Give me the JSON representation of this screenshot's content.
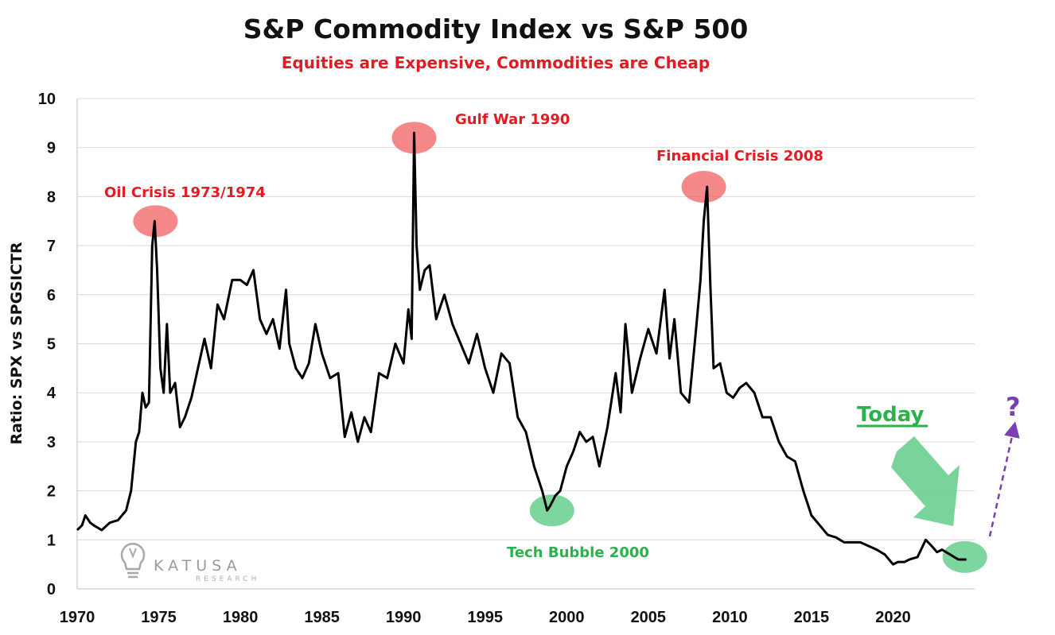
{
  "chart_data": {
    "type": "line",
    "title": "S&P Commodity Index vs S&P 500",
    "subtitle": "Equities are Expensive, Commodities are Cheap",
    "ylabel": "Ratio: SPX vs SPGSICTR",
    "xlabel": "",
    "xlim": [
      1970,
      2025
    ],
    "ylim": [
      0,
      10
    ],
    "xticks": [
      "1970",
      "1975",
      "1980",
      "1985",
      "1990",
      "1995",
      "2000",
      "2005",
      "2010",
      "2015",
      "2020"
    ],
    "yticks": [
      "0",
      "1",
      "2",
      "3",
      "4",
      "5",
      "6",
      "7",
      "8",
      "9",
      "10"
    ],
    "grid": "horizontal",
    "legend": "none",
    "series": [
      {
        "color": "#000000",
        "x": [
          1970.0,
          1970.3,
          1970.5,
          1970.8,
          1971.0,
          1971.5,
          1972.0,
          1972.5,
          1973.0,
          1973.3,
          1973.6,
          1973.8,
          1974.0,
          1974.2,
          1974.4,
          1974.6,
          1974.75,
          1974.9,
          1975.1,
          1975.3,
          1975.5,
          1975.7,
          1976.0,
          1976.3,
          1976.6,
          1977.0,
          1977.4,
          1977.8,
          1978.2,
          1978.6,
          1979.0,
          1979.5,
          1980.0,
          1980.4,
          1980.8,
          1981.2,
          1981.6,
          1982.0,
          1982.4,
          1982.8,
          1983.0,
          1983.4,
          1983.8,
          1984.2,
          1984.6,
          1985.0,
          1985.5,
          1986.0,
          1986.4,
          1986.8,
          1987.2,
          1987.6,
          1988.0,
          1988.5,
          1989.0,
          1989.5,
          1990.0,
          1990.3,
          1990.5,
          1990.65,
          1990.8,
          1991.0,
          1991.3,
          1991.6,
          1992.0,
          1992.5,
          1993.0,
          1993.5,
          1994.0,
          1994.5,
          1995.0,
          1995.5,
          1996.0,
          1996.5,
          1997.0,
          1997.5,
          1998.0,
          1998.5,
          1998.8,
          1999.0,
          1999.3,
          1999.6,
          2000.0,
          2000.4,
          2000.8,
          2001.2,
          2001.6,
          2002.0,
          2002.5,
          2003.0,
          2003.3,
          2003.6,
          2004.0,
          2004.5,
          2005.0,
          2005.5,
          2006.0,
          2006.3,
          2006.6,
          2007.0,
          2007.5,
          2007.9,
          2008.2,
          2008.4,
          2008.6,
          2008.8,
          2009.0,
          2009.4,
          2009.8,
          2010.2,
          2010.6,
          2011.0,
          2011.5,
          2012.0,
          2012.5,
          2013.0,
          2013.5,
          2014.0,
          2014.5,
          2015.0,
          2015.5,
          2016.0,
          2016.5,
          2017.0,
          2018.0,
          2019.0,
          2019.5,
          2020.0,
          2020.3,
          2020.7,
          2021.0,
          2021.5,
          2022.0,
          2022.3,
          2022.7,
          2023.0,
          2023.5,
          2024.0,
          2024.5
        ],
        "y": [
          1.2,
          1.3,
          1.5,
          1.35,
          1.3,
          1.2,
          1.35,
          1.4,
          1.6,
          2.0,
          3.0,
          3.2,
          4.0,
          3.7,
          3.8,
          7.0,
          7.5,
          6.5,
          4.5,
          4.0,
          5.4,
          4.0,
          4.2,
          3.3,
          3.5,
          3.9,
          4.5,
          5.1,
          4.5,
          5.8,
          5.5,
          6.3,
          6.3,
          6.2,
          6.5,
          5.5,
          5.2,
          5.5,
          4.9,
          6.1,
          5.0,
          4.5,
          4.3,
          4.6,
          5.4,
          4.8,
          4.3,
          4.4,
          3.1,
          3.6,
          3.0,
          3.5,
          3.2,
          4.4,
          4.3,
          5.0,
          4.6,
          5.7,
          5.1,
          9.3,
          7.0,
          6.1,
          6.5,
          6.6,
          5.5,
          6.0,
          5.4,
          5.0,
          4.6,
          5.2,
          4.5,
          4.0,
          4.8,
          4.6,
          3.5,
          3.2,
          2.5,
          2.0,
          1.6,
          1.7,
          1.9,
          2.0,
          2.5,
          2.8,
          3.2,
          3.0,
          3.1,
          2.5,
          3.3,
          4.4,
          3.6,
          5.4,
          4.0,
          4.7,
          5.3,
          4.8,
          6.1,
          4.7,
          5.5,
          4.0,
          3.8,
          5.2,
          6.3,
          7.5,
          8.2,
          6.2,
          4.5,
          4.6,
          4.0,
          3.9,
          4.1,
          4.2,
          4.0,
          3.5,
          3.5,
          3.0,
          2.7,
          2.6,
          2.0,
          1.5,
          1.3,
          1.1,
          1.05,
          0.95,
          0.95,
          0.8,
          0.7,
          0.5,
          0.55,
          0.55,
          0.6,
          0.65,
          1.0,
          0.9,
          0.75,
          0.8,
          0.7,
          0.6,
          0.6
        ]
      }
    ],
    "annotations": [
      {
        "text": "Oil Crisis 1973/1974",
        "x": 1974.8,
        "y": 7.5,
        "color": "#e31b23"
      },
      {
        "text": "Gulf War 1990",
        "x": 1990.65,
        "y": 9.2,
        "color": "#e31b23"
      },
      {
        "text": "Financial Crisis 2008",
        "x": 2008.4,
        "y": 8.2,
        "color": "#e31b23"
      },
      {
        "text": "Tech Bubble 2000",
        "x": 1999.1,
        "y": 1.6,
        "color": "#2bb24c"
      },
      {
        "text": "Today",
        "x": 2024.4,
        "y": 0.65,
        "color": "#2bb24c"
      },
      {
        "text": "?",
        "color": "#7a3fb2"
      }
    ]
  },
  "logo": {
    "name": "KATUSA",
    "sub": "RESEARCH"
  }
}
